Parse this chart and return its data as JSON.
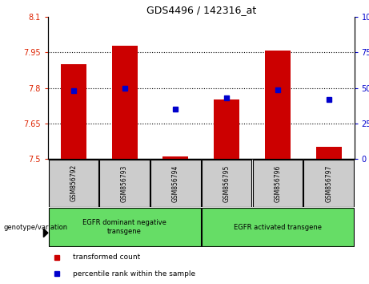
{
  "title": "GDS4496 / 142316_at",
  "categories": [
    "GSM856792",
    "GSM856793",
    "GSM856794",
    "GSM856795",
    "GSM856796",
    "GSM856797"
  ],
  "bar_values": [
    7.9,
    7.98,
    7.51,
    7.75,
    7.96,
    7.55
  ],
  "bar_base": 7.5,
  "percentile_values": [
    48,
    50,
    35,
    43,
    49,
    42
  ],
  "ylim_left": [
    7.5,
    8.1
  ],
  "ylim_right": [
    0,
    100
  ],
  "yticks_left": [
    7.5,
    7.65,
    7.8,
    7.95,
    8.1
  ],
  "yticks_right": [
    0,
    25,
    50,
    75,
    100
  ],
  "bar_color": "#cc0000",
  "percentile_color": "#0000cc",
  "group1_label": "EGFR dominant negative\ntransgene",
  "group2_label": "EGFR activated transgene",
  "group1_indices": [
    0,
    1,
    2
  ],
  "group2_indices": [
    3,
    4,
    5
  ],
  "group_bg_color": "#66dd66",
  "sample_bg_color": "#cccccc",
  "legend_red_label": "transformed count",
  "legend_blue_label": "percentile rank within the sample",
  "genotype_label": "genotype/variation"
}
